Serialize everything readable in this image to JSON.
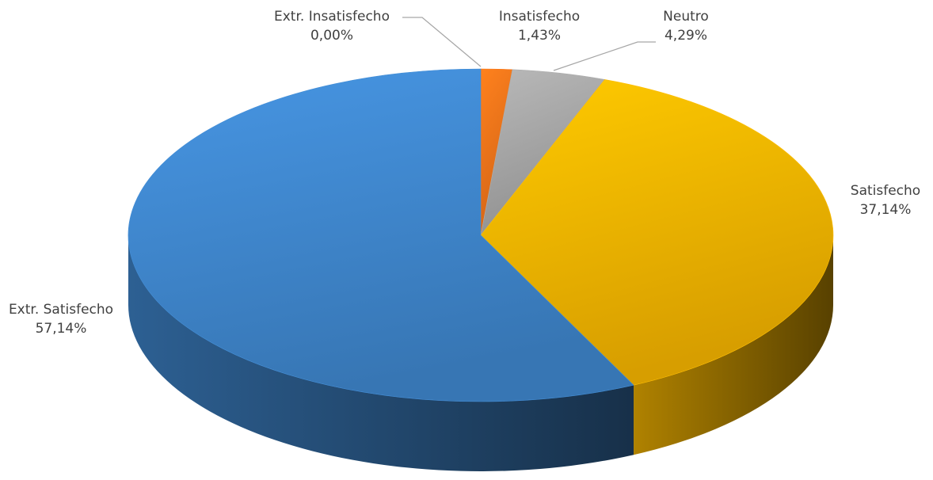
{
  "chart_data": {
    "type": "pie",
    "style": "3d",
    "start_angle_deg": 0,
    "direction": "clockwise",
    "slices": [
      {
        "name": "Extr. Insatisfecho",
        "value": 0.0,
        "value_label": "0,00%",
        "color": "#c0504d"
      },
      {
        "name": "Insatisfecho",
        "value": 1.43,
        "value_label": "1,43%",
        "color": "#f0731a"
      },
      {
        "name": "Neutro",
        "value": 4.29,
        "value_label": "4,29%",
        "color": "#a5a5a5"
      },
      {
        "name": "Satisfecho",
        "value": 37.14,
        "value_label": "37,14%",
        "color": "#f4b400"
      },
      {
        "name": "Extr. Satisfecho",
        "value": 57.14,
        "value_label": "57,14%",
        "color": "#3f86cc"
      }
    ],
    "legend": "none"
  }
}
